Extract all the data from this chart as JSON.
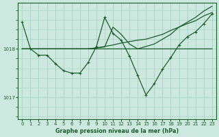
{
  "background_color": "#cce8df",
  "grid_color": "#aad4c8",
  "line_color": "#1a5c28",
  "title": "Graphe pression niveau de la mer (hPa)",
  "xlim": [
    -0.5,
    23.5
  ],
  "ylim": [
    1016.55,
    1018.95
  ],
  "yticks": [
    1017,
    1018
  ],
  "xticks": [
    0,
    1,
    2,
    3,
    4,
    5,
    6,
    7,
    8,
    9,
    10,
    11,
    12,
    13,
    14,
    15,
    16,
    17,
    18,
    19,
    20,
    21,
    22,
    23
  ],
  "line1": [
    1018.55,
    1018.0,
    1017.87,
    1017.87,
    1017.7,
    1017.55,
    1017.5,
    1017.5,
    1017.72,
    1018.05,
    1018.65,
    1018.32,
    1018.18,
    1017.85,
    1017.45,
    1017.05,
    1017.28,
    1017.58,
    1017.82,
    1018.08,
    1018.25,
    1018.35,
    1018.52,
    1018.72
  ],
  "line2": [
    1018.0,
    1018.0,
    1018.0,
    1018.0,
    1018.0,
    1018.0,
    1018.0,
    1018.0,
    1018.0,
    1018.0,
    1018.0,
    1018.0,
    1018.0,
    1018.0,
    1018.0,
    1018.05,
    1018.1,
    1018.2,
    1018.3,
    1018.45,
    1018.55,
    1018.65,
    1018.78,
    1018.88
  ],
  "line3": [
    1018.0,
    1018.0,
    1018.0,
    1018.0,
    1018.0,
    1018.0,
    1018.0,
    1018.0,
    1018.0,
    1018.02,
    1018.05,
    1018.08,
    1018.12,
    1018.15,
    1018.18,
    1018.2,
    1018.25,
    1018.3,
    1018.38,
    1018.45,
    1018.52,
    1018.58,
    1018.68,
    1018.75
  ],
  "line4": [
    1018.0,
    1018.0,
    1018.0,
    1018.0,
    1018.0,
    1018.0,
    1018.0,
    1018.0,
    1018.0,
    1018.02,
    1018.04,
    1018.45,
    1018.3,
    1018.1,
    1018.0,
    1018.0,
    1018.0,
    1018.0,
    1018.0,
    1018.0,
    1018.0,
    1018.0,
    1018.0,
    1018.0
  ],
  "linewidth": 0.9,
  "markersize": 3.0,
  "title_fontsize": 5.8,
  "tick_fontsize": 5.0
}
